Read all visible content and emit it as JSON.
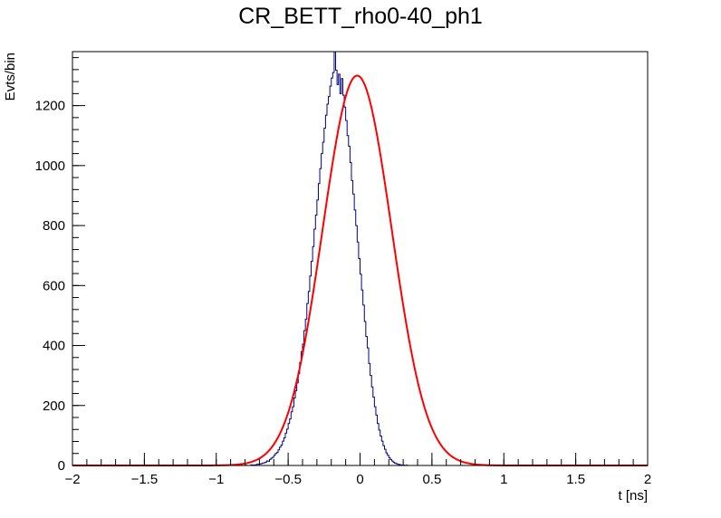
{
  "chart_data": {
    "type": "histogram",
    "title": "CR_BETT_rho0-40_ph1",
    "xlabel": "t [ns]",
    "ylabel": "Evts/bin",
    "xlim": [
      -2,
      2
    ],
    "ylim": [
      0,
      1380
    ],
    "x_ticks": [
      -2,
      -1.5,
      -1,
      -0.5,
      0,
      0.5,
      1,
      1.5,
      2
    ],
    "x_tick_labels": [
      "−2",
      "−1.5",
      "−1",
      "−0.5",
      "0",
      "0.5",
      "1",
      "1.5",
      "2"
    ],
    "y_ticks": [
      0,
      200,
      400,
      600,
      800,
      1000,
      1200
    ],
    "y_tick_labels": [
      "0",
      "200",
      "400",
      "600",
      "800",
      "1000",
      "1200"
    ],
    "grid": false,
    "legend": "none",
    "series": [
      {
        "kind": "histogram",
        "color": "#000080",
        "bin_width": 0.01,
        "x_start": -2.0,
        "values": [
          0,
          0,
          0,
          0,
          0,
          0,
          0,
          0,
          0,
          0,
          0,
          0,
          0,
          0,
          0,
          0,
          0,
          0,
          0,
          0,
          0,
          0,
          0,
          0,
          0,
          0,
          0,
          0,
          0,
          0,
          0,
          0,
          0,
          0,
          0,
          0,
          0,
          0,
          0,
          0,
          0,
          0,
          0,
          0,
          0,
          0,
          0,
          0,
          0,
          0,
          0,
          0,
          0,
          0,
          0,
          0,
          0,
          0,
          0,
          0,
          0,
          0,
          0,
          0,
          0,
          0,
          0,
          0,
          0,
          0,
          0,
          0,
          0,
          0,
          0,
          0,
          0,
          0,
          0,
          0,
          0,
          0,
          0,
          0,
          0,
          0,
          0,
          0,
          0,
          0,
          0,
          0,
          0,
          0,
          0,
          0,
          0,
          0,
          0,
          0,
          0,
          0,
          0,
          0,
          0,
          0,
          0,
          0,
          0,
          0,
          0,
          0,
          0,
          0,
          0,
          0,
          0,
          0,
          0,
          0,
          1,
          0,
          0,
          0,
          2,
          1,
          2,
          2,
          4,
          4,
          5,
          6,
          8,
          9,
          11,
          15,
          14,
          20,
          24,
          27,
          34,
          40,
          43,
          52,
          61,
          68,
          81,
          92,
          108,
          121,
          140,
          155,
          179,
          196,
          225,
          249,
          275,
          306,
          343,
          380,
          405,
          450,
          488,
          540,
          580,
          632,
          681,
          730,
          788,
          835,
          885,
          940,
          990,
          1040,
          1078,
          1125,
          1168,
          1205,
          1230,
          1265,
          1292,
          1310,
          1385,
          1318,
          1270,
          1305,
          1240,
          1290,
          1235,
          1195,
          1150,
          1100,
          1065,
          1010,
          950,
          905,
          852,
          800,
          745,
          690,
          638,
          585,
          535,
          480,
          430,
          392,
          340,
          300,
          262,
          228,
          196,
          168,
          140,
          118,
          98,
          81,
          66,
          54,
          42,
          34,
          26,
          20,
          15,
          11,
          8,
          6,
          4,
          3,
          2,
          1,
          1,
          0,
          1,
          0,
          0,
          0,
          0,
          0,
          0,
          0,
          0,
          0,
          0,
          0,
          0,
          0,
          0,
          0,
          0,
          0,
          0,
          0,
          0,
          0,
          0,
          0,
          0,
          0,
          0,
          0,
          0,
          0,
          0,
          0,
          0,
          0,
          0,
          0,
          0,
          0,
          0,
          0,
          0,
          0,
          0,
          0,
          0,
          0,
          0,
          0,
          0,
          0,
          0,
          0,
          0,
          0,
          0,
          0,
          0,
          0,
          0,
          0,
          0,
          0,
          0,
          0,
          0,
          0,
          0,
          0,
          0,
          0,
          0,
          0,
          0,
          0,
          0,
          0,
          0,
          0,
          0,
          0,
          0,
          0,
          0,
          0,
          0,
          0,
          0,
          0,
          0,
          0,
          0,
          0,
          0,
          0,
          0,
          0,
          0,
          0,
          0,
          0,
          0,
          0,
          0,
          0,
          0,
          0,
          0,
          0,
          0,
          0,
          0,
          0,
          0,
          0,
          0,
          0,
          0,
          0,
          0,
          0,
          0,
          0,
          0,
          0,
          0,
          0,
          0,
          0,
          0,
          0,
          0,
          0,
          0,
          0,
          0,
          0,
          0,
          0,
          0,
          0,
          0,
          0,
          0,
          0,
          0,
          0,
          0,
          0,
          0,
          0,
          0,
          0,
          0,
          0,
          0,
          0,
          0,
          0,
          0,
          0,
          0,
          0,
          0,
          0
        ]
      },
      {
        "kind": "gaussian-fit",
        "color": "#ff0000",
        "amplitude": 1300,
        "mean": -0.02,
        "sigma": 0.24
      }
    ]
  }
}
